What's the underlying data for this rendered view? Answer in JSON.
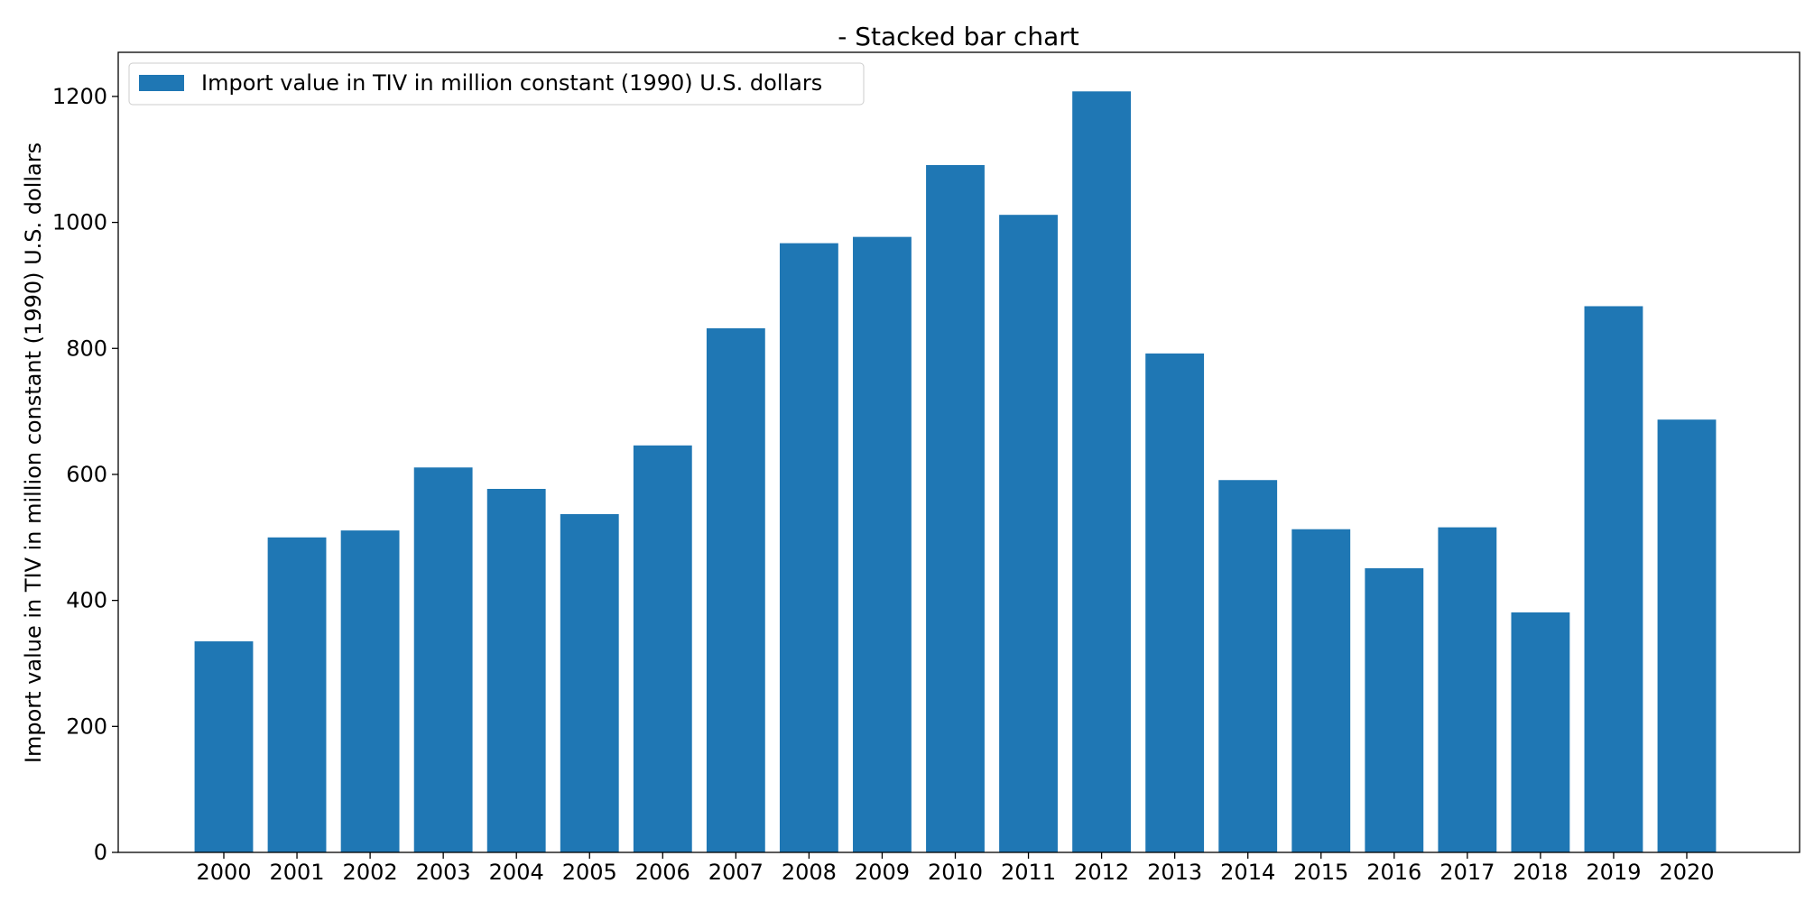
{
  "chart_data": {
    "type": "bar",
    "title": "- Stacked bar chart",
    "xlabel": "",
    "ylabel": "Import value in TIV in million constant (1990) U.S. dollars",
    "categories": [
      "2000",
      "2001",
      "2002",
      "2003",
      "2004",
      "2005",
      "2006",
      "2007",
      "2008",
      "2009",
      "2010",
      "2011",
      "2012",
      "2013",
      "2014",
      "2015",
      "2016",
      "2017",
      "2018",
      "2019",
      "2020"
    ],
    "series": [
      {
        "name": "Import value in TIV in million constant (1990) U.S. dollars",
        "values": [
          335,
          500,
          511,
          611,
          577,
          537,
          646,
          832,
          967,
          977,
          1091,
          1012,
          1208,
          792,
          591,
          513,
          451,
          516,
          381,
          867,
          687
        ],
        "color": "#1f77b4"
      }
    ],
    "ylim": [
      0,
      1270
    ],
    "yticks": [
      0,
      200,
      400,
      600,
      800,
      1000,
      1200
    ],
    "grid": false,
    "legend_position": "top-left"
  }
}
